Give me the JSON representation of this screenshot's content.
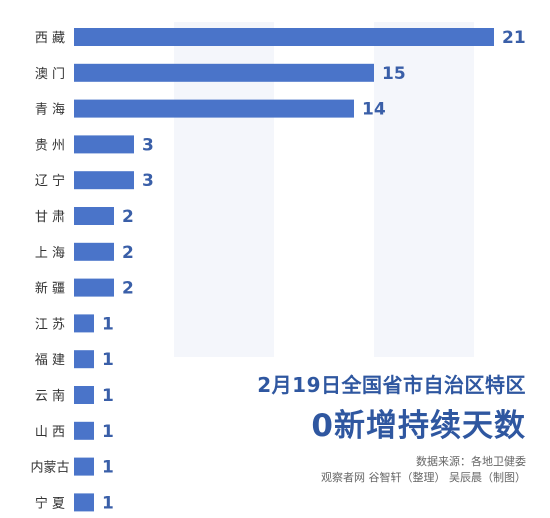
{
  "chart_data": {
    "type": "bar",
    "orientation": "horizontal",
    "categories": [
      "西 藏",
      "澳 门",
      "青 海",
      "贵 州",
      "辽 宁",
      "甘 肃",
      "上 海",
      "新 疆",
      "江 苏",
      "福 建",
      "云 南",
      "山 西",
      "内蒙古",
      "宁 夏"
    ],
    "values": [
      21,
      15,
      14,
      3,
      3,
      2,
      2,
      2,
      1,
      1,
      1,
      1,
      1,
      1
    ],
    "xlim": [
      0,
      21
    ],
    "grid": false,
    "bar_color": "#4a74c9",
    "value_label_color": "#3a5fa8"
  },
  "title": {
    "line1": "2月19日全国省市自治区特区",
    "line2": "0新增持续天数"
  },
  "source": "数据来源：各地卫健委",
  "credit": "观察者网 谷智轩（整理） 吴辰晨（制图）",
  "colors": {
    "title": "#2f57a0",
    "band_light": "#eef2fa",
    "band_lighter": "#f4f6fb"
  }
}
